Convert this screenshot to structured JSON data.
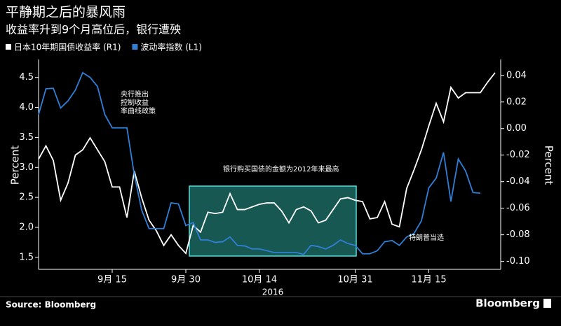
{
  "chart_data": {
    "type": "line",
    "title": "平静期之后的暴风雨",
    "subtitle": "收益率升到9个月高位后，银行遭殃",
    "ylabel": "Percent",
    "y2label": "Percent",
    "xlabel": "2016",
    "source": "Source: Bloomberg",
    "brand": "Bloomberg",
    "annotations": [
      [
        "央行推出",
        "控制收益",
        "率曲线政策"
      ],
      "银行购买国债的金额为2012年来最高",
      "特朗普当选"
    ],
    "categories": [
      null,
      null,
      null,
      null,
      null,
      null,
      null,
      null,
      null,
      null,
      "9月 15",
      null,
      null,
      null,
      null,
      null,
      null,
      null,
      null,
      null,
      "9月 30",
      null,
      null,
      null,
      null,
      null,
      null,
      null,
      null,
      null,
      "10月 14",
      null,
      null,
      null,
      null,
      null,
      null,
      null,
      null,
      null,
      null,
      null,
      null,
      "10月 31",
      null,
      null,
      null,
      null,
      null,
      null,
      null,
      null,
      null,
      "11月 15",
      null,
      null,
      null,
      null,
      null,
      null,
      null,
      null,
      null
    ],
    "ylim": [
      1.3,
      4.8
    ],
    "yticks": [
      1.5,
      {
        "value": 2.0,
        "label": "2.0"
      },
      2.5,
      {
        "value": 3.0,
        "label": "3.0"
      },
      3.5,
      {
        "value": 4.0,
        "label": "4.0"
      },
      4.5
    ],
    "y2lim": [
      -0.106,
      0.052
    ],
    "y2ticks": [
      {
        "value": -0.1,
        "label": "-0.10"
      },
      {
        "value": -0.08,
        "label": "-0.08"
      },
      {
        "value": -0.06,
        "label": "-0.06"
      },
      {
        "value": -0.04,
        "label": "-0.04"
      },
      {
        "value": -0.02,
        "label": "-0.02"
      },
      {
        "value": 0,
        "label": "0.00"
      },
      {
        "value": 0.02,
        "label": "0.02"
      },
      {
        "value": 0.04,
        "label": "0.04"
      }
    ],
    "legend": "top-left",
    "series": [
      {
        "name": "日本10年期国债收益率 (R1)",
        "color": "#ffffff",
        "axis": "y2",
        "values": [
          -0.023,
          -0.013,
          -0.024,
          -0.054,
          -0.041,
          -0.02,
          -0.016,
          -0.007,
          -0.016,
          -0.025,
          -0.044,
          -0.044,
          -0.067,
          -0.032,
          -0.052,
          -0.069,
          -0.077,
          -0.088,
          -0.08,
          -0.088,
          -0.094,
          -0.073,
          -0.078,
          -0.063,
          -0.064,
          -0.063,
          -0.049,
          -0.061,
          -0.061,
          -0.059,
          -0.057,
          -0.056,
          -0.056,
          -0.062,
          -0.071,
          -0.061,
          -0.059,
          -0.062,
          -0.071,
          -0.069,
          -0.061,
          -0.053,
          -0.052,
          -0.054,
          -0.055,
          -0.068,
          -0.067,
          -0.055,
          -0.072,
          -0.074,
          -0.045,
          -0.031,
          -0.016,
          0.002,
          0.019,
          0.005,
          0.031,
          0.023,
          0.027,
          0.027,
          0.027,
          0.035,
          0.042
        ]
      },
      {
        "name": "波动率指数 (L1)",
        "color": "#2f7fd6",
        "values": [
          3.88,
          4.31,
          4.32,
          3.99,
          4.11,
          4.29,
          4.58,
          4.5,
          4.35,
          3.88,
          3.66,
          3.66,
          3.66,
          2.88,
          2.29,
          1.98,
          1.98,
          1.98,
          2.41,
          2.39,
          2.03,
          2.08,
          1.79,
          1.79,
          1.75,
          1.76,
          1.84,
          1.7,
          1.69,
          1.64,
          1.64,
          1.61,
          1.58,
          1.58,
          1.58,
          1.58,
          1.55,
          1.7,
          1.68,
          1.64,
          1.7,
          1.79,
          1.73,
          1.7,
          1.56,
          1.56,
          1.61,
          1.76,
          1.78,
          1.7,
          1.84,
          1.9,
          2.11,
          2.66,
          2.82,
          3.25,
          2.43,
          3.14,
          2.94,
          2.58,
          2.57,
          null,
          null
        ]
      }
    ]
  }
}
